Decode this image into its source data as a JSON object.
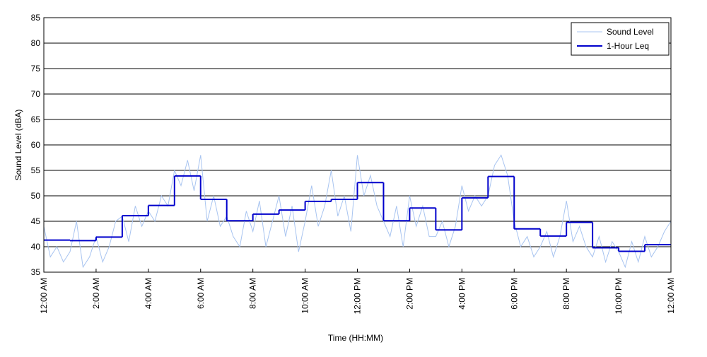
{
  "chart_data": {
    "type": "line",
    "xlabel": "Time (HH:MM)",
    "ylabel": "Sound Level (dBA)",
    "xlim": [
      0,
      24
    ],
    "ylim": [
      35,
      85
    ],
    "xticks": [
      {
        "value": 0,
        "label": "12:00 AM"
      },
      {
        "value": 2,
        "label": "2:00 AM"
      },
      {
        "value": 4,
        "label": "4:00 AM"
      },
      {
        "value": 6,
        "label": "6:00 AM"
      },
      {
        "value": 8,
        "label": "8:00 AM"
      },
      {
        "value": 10,
        "label": "10:00 AM"
      },
      {
        "value": 12,
        "label": "12:00 PM"
      },
      {
        "value": 14,
        "label": "2:00 PM"
      },
      {
        "value": 16,
        "label": "4:00 PM"
      },
      {
        "value": 18,
        "label": "6:00 PM"
      },
      {
        "value": 20,
        "label": "8:00 PM"
      },
      {
        "value": 22,
        "label": "10:00 PM"
      },
      {
        "value": 24,
        "label": "12:00 AM"
      }
    ],
    "yticks": [
      35,
      40,
      45,
      50,
      55,
      60,
      65,
      70,
      75,
      80,
      85
    ],
    "grid": true,
    "legend": "upper right",
    "series": [
      {
        "name": "Sound Level",
        "color": "#a8c4f0",
        "style": "line",
        "x": [
          0,
          0.25,
          0.5,
          0.75,
          1,
          1.25,
          1.5,
          1.75,
          2,
          2.25,
          2.5,
          2.75,
          3,
          3.25,
          3.5,
          3.75,
          4,
          4.25,
          4.5,
          4.75,
          5,
          5.25,
          5.5,
          5.75,
          6,
          6.25,
          6.5,
          6.75,
          7,
          7.25,
          7.5,
          7.75,
          8,
          8.25,
          8.5,
          8.75,
          9,
          9.25,
          9.5,
          9.75,
          10,
          10.25,
          10.5,
          10.75,
          11,
          11.25,
          11.5,
          11.75,
          12,
          12.25,
          12.5,
          12.75,
          13,
          13.25,
          13.5,
          13.75,
          14,
          14.25,
          14.5,
          14.75,
          15,
          15.25,
          15.5,
          15.75,
          16,
          16.25,
          16.5,
          16.75,
          17,
          17.25,
          17.5,
          17.75,
          18,
          18.25,
          18.5,
          18.75,
          19,
          19.25,
          19.5,
          19.75,
          20,
          20.25,
          20.5,
          20.75,
          21,
          21.25,
          21.5,
          21.75,
          22,
          22.25,
          22.5,
          22.75,
          23,
          23.25,
          23.5,
          23.75,
          24
        ],
        "values": [
          44,
          38,
          40,
          37,
          39,
          45,
          36,
          38,
          42,
          37,
          40,
          45,
          46,
          41,
          48,
          44,
          47,
          45,
          50,
          48,
          55,
          52,
          57,
          51,
          58,
          45,
          50,
          44,
          46,
          42,
          40,
          47,
          43,
          49,
          40,
          45,
          50,
          42,
          48,
          39,
          45,
          52,
          44,
          48,
          55,
          46,
          50,
          43,
          58,
          50,
          54,
          48,
          45,
          42,
          48,
          40,
          50,
          44,
          48,
          42,
          42,
          45,
          40,
          44,
          52,
          47,
          50,
          48,
          50,
          56,
          58,
          54,
          45,
          40,
          42,
          38,
          40,
          43,
          38,
          42,
          49,
          41,
          44,
          40,
          38,
          42,
          37,
          41,
          39,
          36,
          41,
          37,
          42,
          38,
          40,
          43,
          45
        ]
      },
      {
        "name": "1-Hour Leq",
        "color": "#0000cc",
        "style": "step",
        "x": [
          0,
          1,
          2,
          3,
          4,
          5,
          6,
          7,
          8,
          9,
          10,
          11,
          12,
          13,
          14,
          15,
          16,
          17,
          18,
          19,
          20,
          21,
          22,
          23
        ],
        "values": [
          41.3,
          41.2,
          41.9,
          46.1,
          48.1,
          53.9,
          49.3,
          45.1,
          46.4,
          47.2,
          48.9,
          49.3,
          52.6,
          45.1,
          47.6,
          43.3,
          49.6,
          53.8,
          43.5,
          42.1,
          44.8,
          39.8,
          39.1,
          40.4
        ]
      }
    ]
  }
}
